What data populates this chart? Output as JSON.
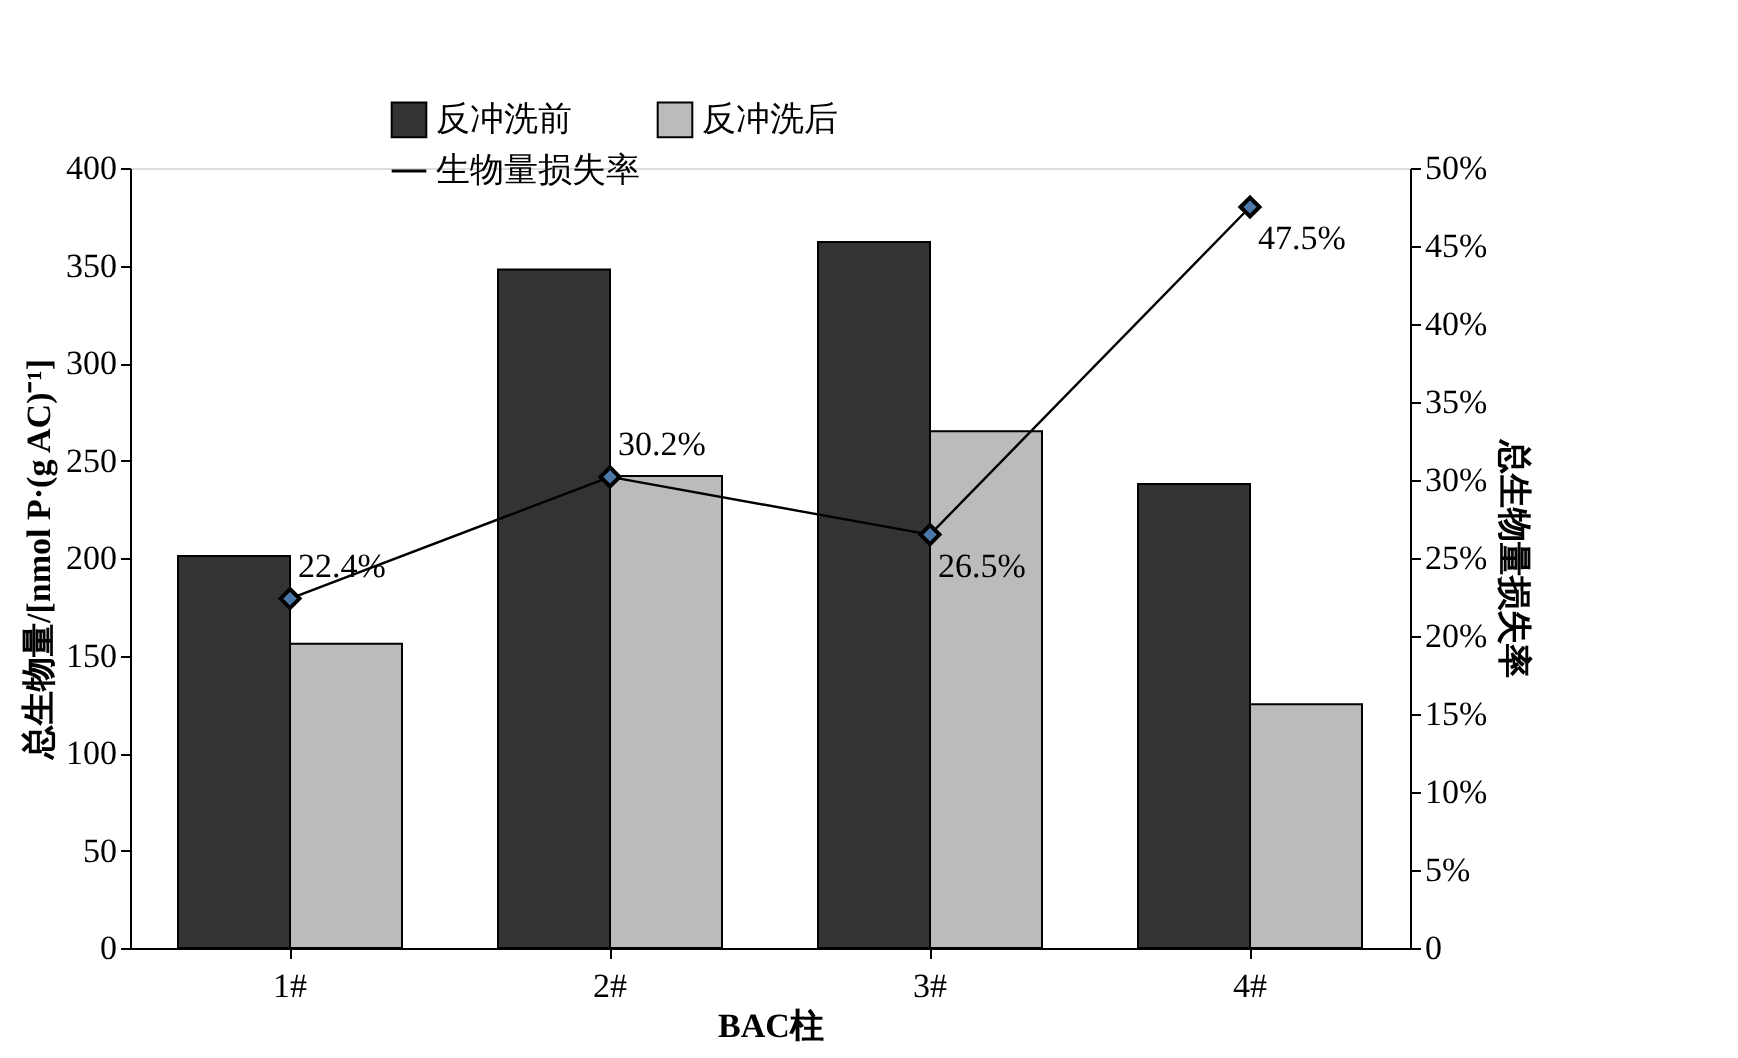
{
  "chart_data": {
    "type": "bar",
    "categories": [
      "1#",
      "2#",
      "3#",
      "4#"
    ],
    "xlabel": "BAC柱",
    "ylabel": "总生物量/[nmol P·(g AC)⁻¹]",
    "y2label": "总生物量损失率",
    "series": [
      {
        "name": "反冲洗前",
        "color": "#333333",
        "values": [
          201,
          348,
          362,
          238
        ]
      },
      {
        "name": "反冲洗后",
        "color": "#bbbbbb",
        "values": [
          156,
          242,
          265,
          125
        ]
      },
      {
        "name": "生物量损失率",
        "color": "#000000",
        "type": "line",
        "axis": "y2",
        "marker": "diamond",
        "values": [
          22.4,
          30.2,
          26.5,
          47.5
        ],
        "value_labels": [
          "22.4%",
          "30.2%",
          "26.5%",
          "47.5%"
        ]
      }
    ],
    "ylim": [
      0,
      400
    ],
    "yticks": [
      0,
      50,
      100,
      150,
      200,
      250,
      300,
      350,
      400
    ],
    "y2lim": [
      0,
      50
    ],
    "y2ticks": [
      {
        "value": 0,
        "label": "0"
      },
      {
        "value": 5,
        "label": "5%"
      },
      {
        "value": 10,
        "label": "10%"
      },
      {
        "value": 15,
        "label": "15%"
      },
      {
        "value": 20,
        "label": "20%"
      },
      {
        "value": 25,
        "label": "25%"
      },
      {
        "value": 30,
        "label": "30%"
      },
      {
        "value": 35,
        "label": "35%"
      },
      {
        "value": 40,
        "label": "40%"
      },
      {
        "value": 45,
        "label": "45%"
      },
      {
        "value": 50,
        "label": "50%"
      }
    ],
    "grid": false,
    "legend": "top left"
  }
}
